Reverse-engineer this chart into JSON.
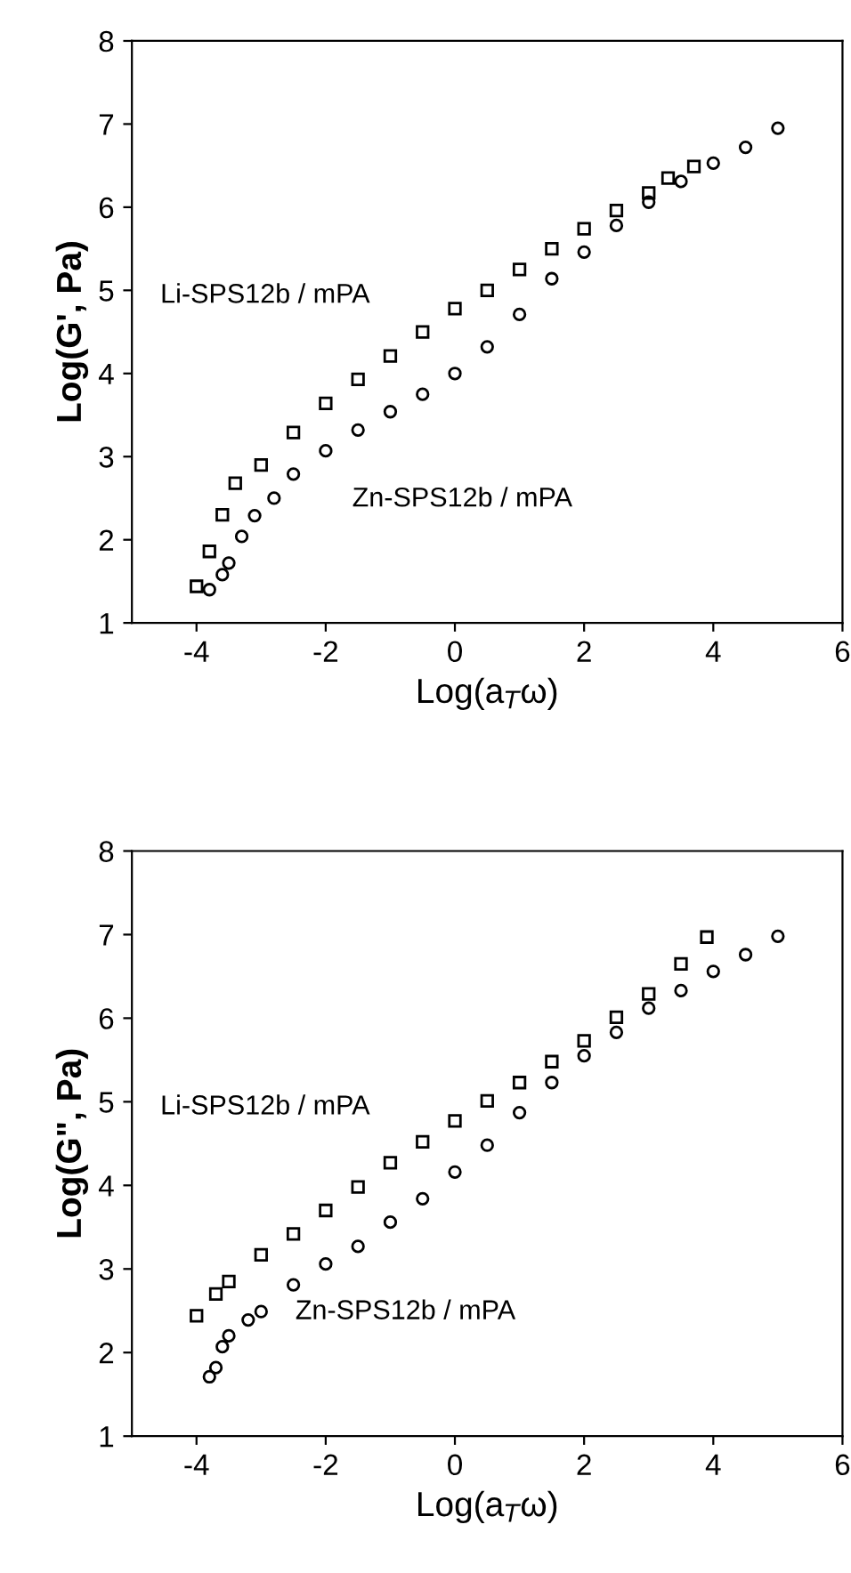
{
  "chart_data": [
    {
      "type": "scatter",
      "xlabel": "Log(a$_{T}$ω)",
      "ylabel": "Log(G', Pa)",
      "xlim": [
        -5,
        6
      ],
      "ylim": [
        1,
        8
      ],
      "xticks": [
        -4,
        -2,
        0,
        2,
        4,
        6
      ],
      "yticks": [
        1,
        2,
        3,
        4,
        5,
        6,
        7,
        8
      ],
      "grid": false,
      "legend": false,
      "series": [
        {
          "name": "Li-SPS12b / mPA",
          "color": "#000000",
          "marker": "square",
          "x": [
            -4,
            -3.8,
            -3.6,
            -3.4,
            -3,
            -2.5,
            -2,
            -1.5,
            -1,
            -0.5,
            0,
            0.5,
            1,
            1.5,
            2,
            2.5,
            3,
            3.3,
            3.7
          ],
          "values": [
            1.44,
            1.86,
            2.3,
            2.68,
            2.9,
            3.29,
            3.64,
            3.93,
            4.21,
            4.5,
            4.78,
            5.0,
            5.25,
            5.5,
            5.74,
            5.96,
            6.17,
            6.35,
            6.49
          ]
        },
        {
          "name": "Zn-SPS12b / mPA",
          "color": "#000000",
          "marker": "circle",
          "x": [
            -3.8,
            -3.6,
            -3.5,
            -3.3,
            -3.1,
            -2.8,
            -2.5,
            -2,
            -1.5,
            -1,
            -0.5,
            0,
            0.5,
            1,
            1.5,
            2,
            2.5,
            3,
            3.5,
            4,
            4.5,
            5
          ],
          "values": [
            1.4,
            1.58,
            1.72,
            2.04,
            2.29,
            2.5,
            2.79,
            3.07,
            3.32,
            3.54,
            3.75,
            4.0,
            4.32,
            4.71,
            5.14,
            5.46,
            5.78,
            6.06,
            6.31,
            6.53,
            6.72,
            6.95
          ]
        }
      ]
    },
    {
      "type": "scatter",
      "xlabel": "Log(a$_{T}$ω)",
      "ylabel": "Log(G\", Pa)",
      "xlim": [
        -5,
        6
      ],
      "ylim": [
        1,
        8
      ],
      "xticks": [
        -4,
        -2,
        0,
        2,
        4,
        6
      ],
      "yticks": [
        1,
        2,
        3,
        4,
        5,
        6,
        7,
        8
      ],
      "grid": false,
      "legend": false,
      "series": [
        {
          "name": "Li-SPS12b / mPA",
          "color": "#000000",
          "marker": "square",
          "x": [
            -4,
            -3.7,
            -3.5,
            -3,
            -2.5,
            -2,
            -1.5,
            -1,
            -0.5,
            0,
            0.5,
            1,
            1.5,
            2,
            2.5,
            3,
            3.5,
            3.9
          ],
          "values": [
            2.44,
            2.7,
            2.85,
            3.17,
            3.42,
            3.7,
            3.98,
            4.27,
            4.52,
            4.77,
            5.01,
            5.23,
            5.48,
            5.73,
            6.01,
            6.29,
            6.65,
            6.97
          ]
        },
        {
          "name": "Zn-SPS12b / mPA",
          "color": "#000000",
          "marker": "circle",
          "x": [
            -3.8,
            -3.7,
            -3.6,
            -3.5,
            -3.2,
            -3,
            -2.5,
            -2,
            -1.5,
            -1,
            -0.5,
            0,
            0.5,
            1,
            1.5,
            2,
            2.5,
            3,
            3.5,
            4,
            4.5,
            5
          ],
          "values": [
            1.71,
            1.82,
            2.07,
            2.2,
            2.39,
            2.49,
            2.81,
            3.06,
            3.27,
            3.56,
            3.84,
            4.16,
            4.48,
            4.87,
            5.23,
            5.55,
            5.83,
            6.12,
            6.33,
            6.56,
            6.76,
            6.98
          ]
        }
      ]
    }
  ]
}
